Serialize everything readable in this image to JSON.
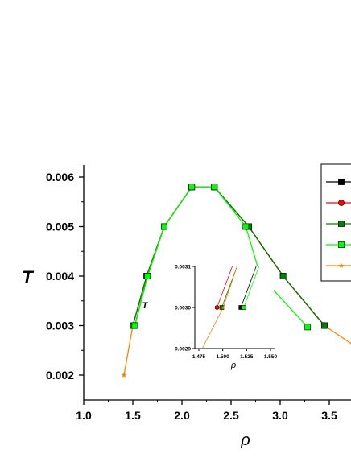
{
  "chart_data": [
    {
      "type": "line",
      "xlabel": "ρ",
      "ylabel": "T",
      "xlim": [
        1.0,
        3.7
      ],
      "ylim": [
        0.0018,
        0.0063
      ],
      "x_ticks": [
        "1.0",
        "1.5",
        "2.0",
        "2.5",
        "3.0",
        "3.5"
      ],
      "y_ticks": [
        "0.002",
        "0.003",
        "0.004",
        "0.005",
        "0.006"
      ],
      "legend": {
        "placement": "top-right",
        "cropped": true
      },
      "series": [
        {
          "color": "#000000",
          "marker": "square",
          "points": [
            [
              1.52,
              0.003
            ],
            [
              1.65,
              0.004
            ],
            [
              1.82,
              0.005
            ],
            [
              2.1,
              0.0058
            ],
            [
              2.33,
              0.0058
            ],
            [
              2.68,
              0.005
            ],
            [
              3.03,
              0.004
            ],
            [
              3.45,
              0.003
            ]
          ]
        },
        {
          "color": "#ff0000",
          "marker": "circle",
          "points": [
            [
              1.5,
              0.003
            ],
            [
              1.64,
              0.004
            ],
            [
              1.82,
              0.005
            ],
            [
              2.1,
              0.0058
            ],
            [
              2.33,
              0.0058
            ],
            [
              2.68,
              0.005
            ],
            [
              3.03,
              0.004
            ],
            [
              3.45,
              0.003
            ]
          ]
        },
        {
          "color": "#008000",
          "marker": "square",
          "points": [
            [
              1.5,
              0.003
            ],
            [
              1.64,
              0.004
            ],
            [
              1.82,
              0.005
            ],
            [
              2.1,
              0.0058
            ],
            [
              2.33,
              0.0058
            ],
            [
              2.68,
              0.005
            ],
            [
              3.03,
              0.004
            ],
            [
              3.45,
              0.003
            ]
          ]
        },
        {
          "color": "#00ff00",
          "marker": "square",
          "points": [
            [
              1.52,
              0.003
            ],
            [
              1.65,
              0.004
            ],
            [
              1.82,
              0.005
            ],
            [
              2.1,
              0.0058
            ],
            [
              2.33,
              0.0058
            ],
            [
              2.65,
              0.005
            ],
            [
              2.8,
              0.004
            ],
            [
              3.28,
              0.00297
            ]
          ]
        },
        {
          "color": "#ff8000",
          "marker": "star",
          "points": [
            [
              1.41,
              0.002
            ],
            [
              1.5,
              0.003
            ],
            [
              1.64,
              0.004
            ],
            [
              1.82,
              0.005
            ],
            [
              2.1,
              0.0058
            ],
            [
              2.33,
              0.0058
            ],
            [
              2.68,
              0.005
            ],
            [
              3.03,
              0.004
            ],
            [
              3.45,
              0.003
            ],
            [
              3.75,
              0.0026
            ]
          ]
        }
      ]
    },
    {
      "type": "line",
      "role": "inset",
      "xlabel": "ρ",
      "ylabel": "T",
      "xlim": [
        1.475,
        1.55
      ],
      "ylim": [
        0.0029,
        0.0031
      ],
      "x_ticks": [
        "1.475",
        "1.500",
        "1.525",
        "1.550"
      ],
      "y_ticks": [
        "0.0029",
        "0.0030",
        "0.0031"
      ],
      "series": [
        {
          "color": "#000000",
          "marker": "square",
          "points": [
            [
              1.519,
              0.003
            ],
            [
              1.535,
              0.0031
            ]
          ]
        },
        {
          "color": "#ff0000",
          "marker": "circle",
          "points": [
            [
              1.494,
              0.003
            ],
            [
              1.51,
              0.0031
            ]
          ]
        },
        {
          "color": "#008000",
          "marker": "square",
          "points": [
            [
              1.499,
              0.003
            ],
            [
              1.515,
              0.0031
            ]
          ]
        },
        {
          "color": "#00ff00",
          "marker": "square",
          "points": [
            [
              1.522,
              0.003
            ],
            [
              1.538,
              0.0031
            ]
          ]
        },
        {
          "color": "#ff8000",
          "marker": "star",
          "points": [
            [
              1.5005,
              0.003
            ],
            [
              1.4895,
              0.00295
            ],
            [
              1.4785,
              0.0029
            ],
            [
              1.515,
              0.0031
            ]
          ]
        }
      ]
    }
  ]
}
